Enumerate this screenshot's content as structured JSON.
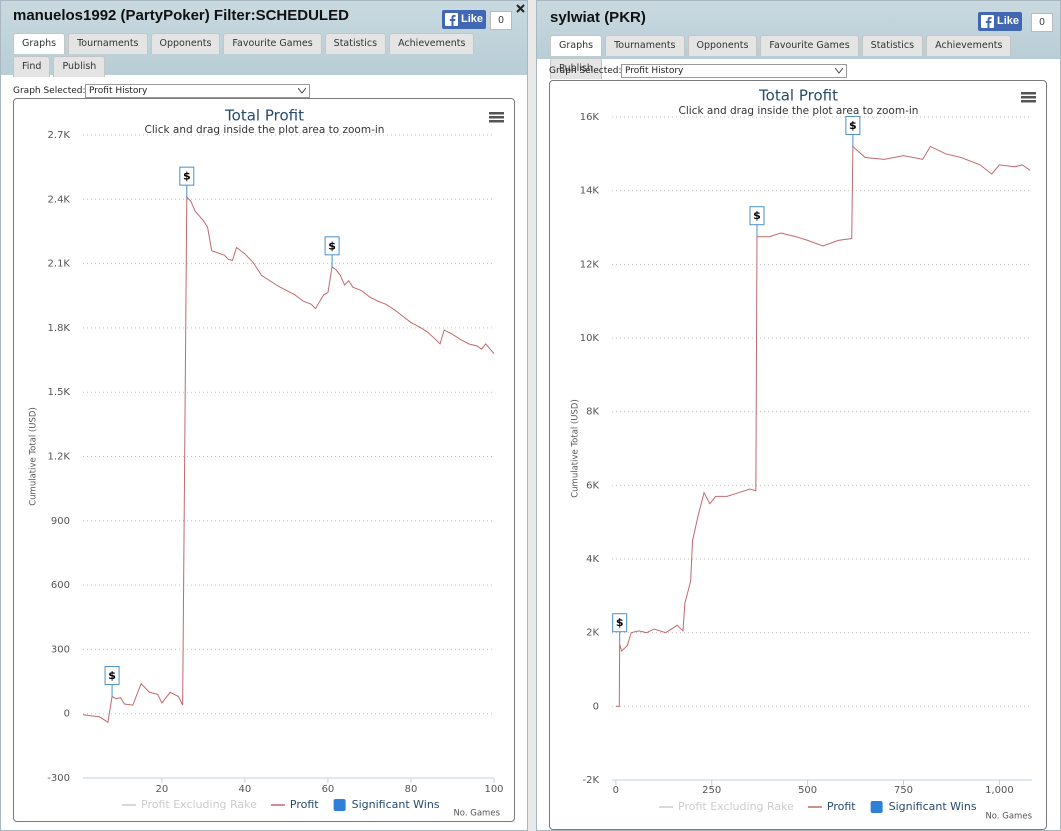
{
  "panels": [
    {
      "title": "manuelos1992 (PartyPoker) Filter:SCHEDULED",
      "like": "Like",
      "like_count": 0,
      "tabs": [
        "Graphs",
        "Tournaments",
        "Opponents",
        "Favourite Games",
        "Statistics",
        "Achievements",
        "Find",
        "Publish"
      ],
      "graph_selected_label": "Graph Selected:",
      "graph_selected": "Profit History"
    },
    {
      "title": "sylwiat (PKR)",
      "like": "Like",
      "like_count": 0,
      "tabs": [
        "Graphs",
        "Tournaments",
        "Opponents",
        "Favourite Games",
        "Statistics",
        "Achievements",
        "Publish"
      ],
      "graph_selected_label": "Graph Selected:",
      "graph_selected": "Profit History"
    }
  ],
  "chart_data": [
    {
      "type": "line",
      "title": "Total Profit",
      "subtitle": "Click and drag inside the plot area to zoom-in",
      "y_label": "Cumulative Total (USD)",
      "x_label": "No. Games",
      "xlim": [
        1,
        100
      ],
      "xticks": [
        20,
        40,
        60,
        80,
        100
      ],
      "ylim": [
        -300,
        2700
      ],
      "yticks": [
        -300,
        0,
        300,
        600,
        900,
        {
          "value": 1200,
          "label": "1.2K"
        },
        {
          "value": 1500,
          "label": "1.5K"
        },
        {
          "value": 1800,
          "label": "1.8K"
        },
        {
          "value": 2100,
          "label": "2.1K"
        },
        {
          "value": 2400,
          "label": "2.4K"
        },
        {
          "value": 2700,
          "label": "2.7K"
        }
      ],
      "grid": true,
      "series": [
        {
          "name": "Profit Excluding Rake",
          "color": "#cccccc",
          "visible": false
        },
        {
          "name": "Profit",
          "color": "#c0696e",
          "x": [
            1,
            5,
            7,
            8,
            9,
            10,
            11,
            13,
            15,
            17,
            19,
            20,
            22,
            24,
            25,
            26,
            27,
            28,
            30,
            31,
            32,
            35,
            36,
            37,
            38,
            40,
            42,
            44,
            46,
            48,
            50,
            52,
            54,
            56,
            57,
            59,
            60,
            61,
            62,
            63,
            64,
            65,
            66,
            68,
            70,
            72,
            74,
            76,
            78,
            80,
            82,
            84,
            86,
            87,
            88,
            90,
            92,
            94,
            96,
            97,
            98,
            100
          ],
          "values": [
            -5,
            -15,
            -40,
            80,
            70,
            75,
            45,
            40,
            140,
            100,
            90,
            50,
            100,
            80,
            40,
            2410,
            2390,
            2345,
            2300,
            2270,
            2160,
            2140,
            2120,
            2115,
            2175,
            2145,
            2105,
            2045,
            2020,
            1995,
            1975,
            1955,
            1925,
            1910,
            1890,
            1955,
            1965,
            2085,
            2070,
            2045,
            2000,
            2020,
            1990,
            1975,
            1945,
            1925,
            1910,
            1885,
            1855,
            1825,
            1805,
            1780,
            1745,
            1725,
            1790,
            1770,
            1745,
            1725,
            1715,
            1700,
            1725,
            1680
          ]
        },
        {
          "name": "Significant Wins",
          "color": "#2f7ed8",
          "label": "$",
          "x": [
            8,
            26,
            61
          ],
          "values": [
            80,
            2410,
            2085
          ]
        }
      ]
    },
    {
      "type": "line",
      "title": "Total Profit",
      "subtitle": "Click and drag inside the plot area to zoom-in",
      "y_label": "Cumulative Total (USD)",
      "x_label": "No. Games",
      "xlim": [
        -10,
        1085
      ],
      "xticks": [
        0,
        250,
        500,
        750,
        {
          "value": 1000,
          "label": "1,000"
        }
      ],
      "ylim": [
        -2000,
        16000
      ],
      "yticks": [
        {
          "value": -2000,
          "label": "-2K"
        },
        0,
        {
          "value": 2000,
          "label": "2K"
        },
        {
          "value": 4000,
          "label": "4K"
        },
        {
          "value": 6000,
          "label": "6K"
        },
        {
          "value": 8000,
          "label": "8K"
        },
        {
          "value": 10000,
          "label": "10K"
        },
        {
          "value": 12000,
          "label": "12K"
        },
        {
          "value": 14000,
          "label": "14K"
        },
        {
          "value": 16000,
          "label": "16K"
        }
      ],
      "grid": true,
      "series": [
        {
          "name": "Profit Excluding Rake",
          "color": "#cccccc",
          "visible": false
        },
        {
          "name": "Profit",
          "color": "#c0696e",
          "x": [
            0,
            9,
            10,
            15,
            30,
            40,
            60,
            80,
            100,
            130,
            160,
            175,
            180,
            195,
            200,
            215,
            230,
            245,
            260,
            290,
            320,
            350,
            365,
            368,
            400,
            430,
            470,
            500,
            540,
            580,
            615,
            618,
            650,
            700,
            750,
            800,
            820,
            860,
            900,
            950,
            980,
            1000,
            1040,
            1060,
            1080
          ],
          "values": [
            0,
            0,
            1700,
            1500,
            1650,
            2000,
            2050,
            2000,
            2100,
            2000,
            2200,
            2050,
            2800,
            3400,
            4500,
            5200,
            5800,
            5500,
            5700,
            5700,
            5800,
            5900,
            5850,
            12750,
            12750,
            12850,
            12750,
            12650,
            12500,
            12650,
            12700,
            15200,
            14900,
            14850,
            14950,
            14850,
            15200,
            15000,
            14900,
            14700,
            14450,
            14700,
            14650,
            14700,
            14550
          ]
        },
        {
          "name": "Significant Wins",
          "color": "#2f7ed8",
          "label": "$",
          "x": [
            10,
            368,
            618
          ],
          "values": [
            1700,
            12750,
            15200
          ]
        }
      ]
    }
  ]
}
